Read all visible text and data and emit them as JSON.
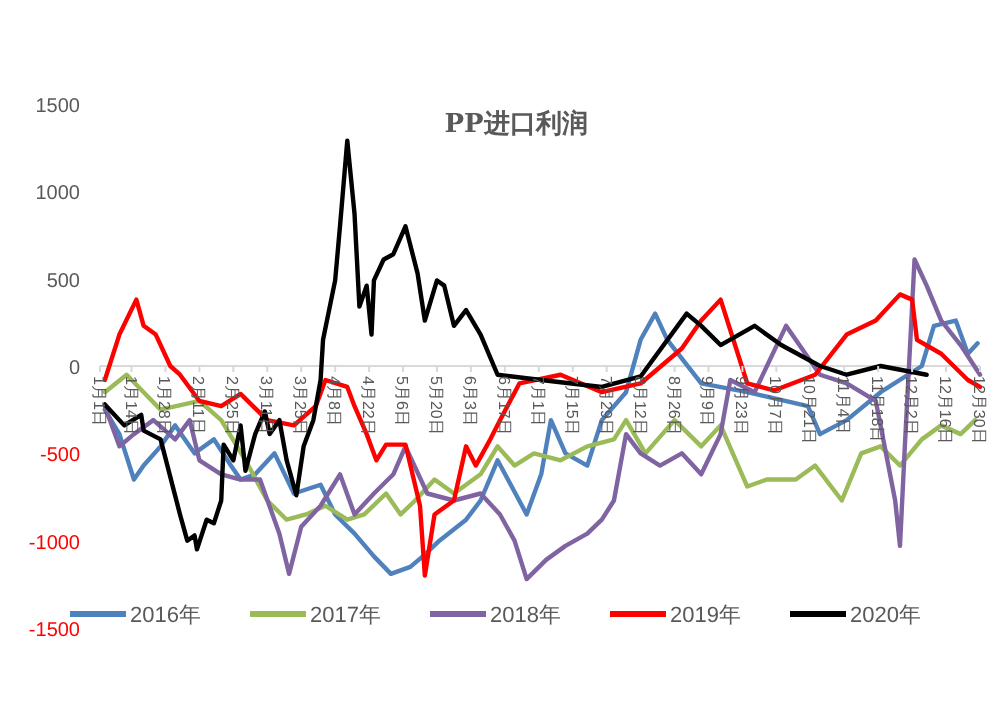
{
  "chart_data": {
    "type": "line",
    "title": "PP进口利润",
    "legend": "bottom",
    "xlim": [
      "--01-01",
      "--12-30"
    ],
    "xticks": [
      {
        "value": "--01-01",
        "label": "1月1日"
      },
      {
        "value": "--01-14",
        "label": "1月14日"
      },
      {
        "value": "--01-28",
        "label": "1月28日"
      },
      {
        "value": "--02-11",
        "label": "2月11日"
      },
      {
        "value": "--02-25",
        "label": "2月25日"
      },
      {
        "value": "--03-11",
        "label": "3月11日"
      },
      {
        "value": "--03-25",
        "label": "3月25日"
      },
      {
        "value": "--04-08",
        "label": "4月8日"
      },
      {
        "value": "--04-22",
        "label": "4月22日"
      },
      {
        "value": "--05-06",
        "label": "5月6日"
      },
      {
        "value": "--05-20",
        "label": "5月20日"
      },
      {
        "value": "--06-03",
        "label": "6月3日"
      },
      {
        "value": "--06-17",
        "label": "6月17日"
      },
      {
        "value": "--07-01",
        "label": "7月1日"
      },
      {
        "value": "--07-15",
        "label": "7月15日"
      },
      {
        "value": "--07-29",
        "label": "7月29日"
      },
      {
        "value": "--08-12",
        "label": "8月12日"
      },
      {
        "value": "--08-26",
        "label": "8月26日"
      },
      {
        "value": "--09-09",
        "label": "9月9日"
      },
      {
        "value": "--09-23",
        "label": "9月23日"
      },
      {
        "value": "--10-07",
        "label": "10月7日"
      },
      {
        "value": "--10-21",
        "label": "10月21日"
      },
      {
        "value": "--11-04",
        "label": "11月4日"
      },
      {
        "value": "--11-18",
        "label": "11月18日"
      },
      {
        "value": "--12-02",
        "label": "12月2日"
      },
      {
        "value": "--12-16",
        "label": "12月16日"
      },
      {
        "value": "--12-30",
        "label": "12月30日"
      }
    ],
    "ylim": [
      -1500,
      1500
    ],
    "yticks": [
      -1500,
      -1000,
      -500,
      0,
      500,
      1000,
      1500
    ],
    "series": [
      {
        "name": "2016年",
        "color": "#4f81bd",
        "x": [
          "--01-03",
          "--01-09",
          "--01-15",
          "--01-19",
          "--01-26",
          "--02-01",
          "--02-09",
          "--02-17",
          "--02-24",
          "--02-28",
          "--03-06",
          "--03-14",
          "--03-22",
          "--04-02",
          "--04-08",
          "--04-16",
          "--04-24",
          "--05-01",
          "--05-09",
          "--05-15",
          "--05-21",
          "--06-01",
          "--06-07",
          "--06-14",
          "--06-26",
          "--07-02",
          "--07-06",
          "--07-12",
          "--07-21",
          "--07-27",
          "--08-06",
          "--08-12",
          "--08-18",
          "--08-23",
          "--09-06",
          "--09-25",
          "--10-20",
          "--10-25",
          "--11-05",
          "--11-19",
          "--12-06",
          "--12-11",
          "--12-20",
          "--12-25",
          "--12-29"
        ],
        "values": [
          -250,
          -390,
          -650,
          -570,
          -460,
          -340,
          -500,
          -420,
          -570,
          -650,
          -620,
          -500,
          -730,
          -680,
          -850,
          -960,
          -1090,
          -1190,
          -1150,
          -1080,
          -1000,
          -880,
          -770,
          -540,
          -850,
          -620,
          -310,
          -500,
          -570,
          -310,
          -150,
          150,
          300,
          150,
          -100,
          -150,
          -230,
          -390,
          -310,
          -150,
          0,
          230,
          260,
          70,
          130
        ]
      },
      {
        "name": "2017年",
        "color": "#9bbb59",
        "x": [
          "--01-03",
          "--01-12",
          "--01-26",
          "--02-11",
          "--02-20",
          "--03-02",
          "--03-11",
          "--03-19",
          "--03-27",
          "--04-04",
          "--04-13",
          "--04-20",
          "--04-29",
          "--05-05",
          "--05-11",
          "--05-19",
          "--05-27",
          "--06-07",
          "--06-14",
          "--06-21",
          "--06-29",
          "--07-10",
          "--07-21",
          "--08-01",
          "--08-06",
          "--08-14",
          "--08-26",
          "--09-06",
          "--09-14",
          "--09-25",
          "--10-03",
          "--10-15",
          "--10-23",
          "--11-03",
          "--11-11",
          "--11-19",
          "--11-27",
          "--12-06",
          "--12-14",
          "--12-22",
          "--12-28"
        ],
        "values": [
          -150,
          -50,
          -250,
          -200,
          -310,
          -540,
          -770,
          -880,
          -850,
          -800,
          -880,
          -850,
          -730,
          -850,
          -770,
          -650,
          -730,
          -620,
          -460,
          -570,
          -500,
          -540,
          -460,
          -420,
          -310,
          -500,
          -310,
          -460,
          -340,
          -690,
          -650,
          -650,
          -570,
          -770,
          -500,
          -460,
          -570,
          -420,
          -340,
          -390,
          -310
        ]
      },
      {
        "name": "2018年",
        "color": "#8064a2",
        "x": [
          "--01-03",
          "--01-09",
          "--01-15",
          "--01-23",
          "--02-01",
          "--02-07",
          "--02-11",
          "--02-20",
          "--02-28",
          "--03-08",
          "--03-16",
          "--03-20",
          "--03-25",
          "--04-02",
          "--04-10",
          "--04-16",
          "--04-24",
          "--05-02",
          "--05-07",
          "--05-16",
          "--05-27",
          "--06-07",
          "--06-15",
          "--06-21",
          "--06-26",
          "--07-04",
          "--07-12",
          "--07-21",
          "--07-27",
          "--08-01",
          "--08-06",
          "--08-12",
          "--08-20",
          "--08-29",
          "--09-06",
          "--09-14",
          "--09-18",
          "--09-28",
          "--10-11",
          "--10-25",
          "--11-05",
          "--11-17",
          "--11-25",
          "--11-27",
          "--11-29",
          "--12-03",
          "--12-08",
          "--12-14",
          "--12-22",
          "--12-30"
        ],
        "values": [
          -230,
          -460,
          -390,
          -310,
          -420,
          -310,
          -540,
          -620,
          -650,
          -650,
          -960,
          -1190,
          -920,
          -800,
          -620,
          -850,
          -730,
          -620,
          -460,
          -730,
          -770,
          -730,
          -850,
          -1000,
          -1220,
          -1110,
          -1030,
          -960,
          -880,
          -770,
          -390,
          -500,
          -570,
          -500,
          -620,
          -390,
          -80,
          -150,
          230,
          -50,
          -100,
          -200,
          -770,
          -1030,
          -460,
          610,
          460,
          260,
          120,
          -50
        ]
      },
      {
        "name": "2019年",
        "color": "#ff0000",
        "x": [
          "--01-03",
          "--01-09",
          "--01-16",
          "--01-19",
          "--01-24",
          "--01-30",
          "--02-03",
          "--02-11",
          "--02-20",
          "--02-28",
          "--03-11",
          "--03-22",
          "--03-31",
          "--04-04",
          "--04-13",
          "--04-16",
          "--04-21",
          "--04-25",
          "--04-29",
          "--05-07",
          "--05-13",
          "--05-15",
          "--05-19",
          "--05-27",
          "--06-01",
          "--06-05",
          "--06-11",
          "--06-15",
          "--06-23",
          "--07-10",
          "--07-27",
          "--08-12",
          "--08-29",
          "--09-06",
          "--09-14",
          "--09-25",
          "--10-06",
          "--10-23",
          "--11-05",
          "--11-17",
          "--11-27",
          "--12-02",
          "--12-04",
          "--12-14",
          "--12-25",
          "--12-30"
        ],
        "values": [
          -80,
          180,
          380,
          230,
          180,
          0,
          -50,
          -200,
          -230,
          -160,
          -310,
          -340,
          -230,
          -80,
          -120,
          -230,
          -390,
          -540,
          -450,
          -450,
          -800,
          -1200,
          -850,
          -770,
          -460,
          -570,
          -420,
          -310,
          -100,
          -50,
          -150,
          -100,
          100,
          260,
          380,
          -100,
          -140,
          -50,
          180,
          260,
          410,
          380,
          150,
          70,
          -80,
          -120
        ]
      },
      {
        "name": "2020年",
        "color": "#000000",
        "x": [
          "--01-03",
          "--01-11",
          "--01-18",
          "--01-19",
          "--01-26",
          "--02-03",
          "--02-06",
          "--02-09",
          "--02-10",
          "--02-14",
          "--02-17",
          "--02-20",
          "--02-21",
          "--02-25",
          "--02-28",
          "--03-02",
          "--03-06",
          "--03-10",
          "--03-12",
          "--03-16",
          "--03-19",
          "--03-23",
          "--03-26",
          "--03-30",
          "--04-02",
          "--04-03",
          "--04-08",
          "--04-10",
          "--04-13",
          "--04-16",
          "--04-18",
          "--04-21",
          "--04-23",
          "--04-24",
          "--04-28",
          "--05-02",
          "--05-07",
          "--05-12",
          "--05-15",
          "--05-20",
          "--05-23",
          "--05-27",
          "--06-01",
          "--06-07",
          "--06-14",
          "--07-02",
          "--07-27",
          "--08-12",
          "--08-31",
          "--09-06",
          "--09-14",
          "--09-28",
          "--10-09",
          "--10-25",
          "--11-05",
          "--11-19",
          "--12-08"
        ],
        "values": [
          -220,
          -340,
          -280,
          -370,
          -420,
          -850,
          -1000,
          -970,
          -1050,
          -880,
          -900,
          -770,
          -450,
          -540,
          -340,
          -600,
          -390,
          -260,
          -390,
          -310,
          -540,
          -740,
          -460,
          -310,
          -80,
          150,
          490,
          800,
          1290,
          870,
          340,
          460,
          180,
          490,
          610,
          640,
          800,
          530,
          260,
          490,
          460,
          230,
          320,
          180,
          -50,
          -80,
          -120,
          -60,
          300,
          230,
          120,
          230,
          120,
          0,
          -50,
          0,
          -50
        ]
      }
    ]
  }
}
